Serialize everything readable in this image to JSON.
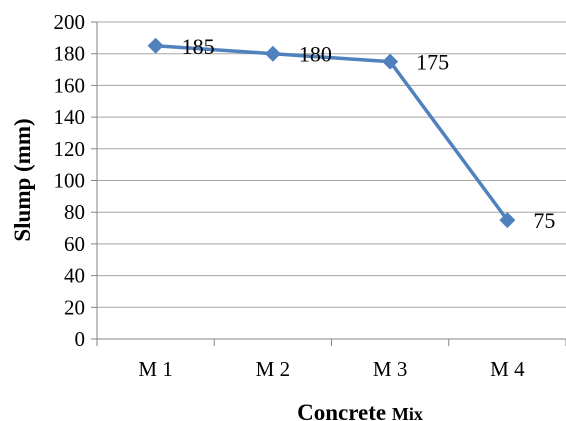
{
  "chart_data": {
    "type": "line",
    "categories": [
      "M 1",
      "M 2",
      "M 3",
      "M 4"
    ],
    "series": [
      {
        "values": [
          185,
          180,
          175,
          75
        ]
      }
    ],
    "data_labels": [
      "185",
      "180",
      "175",
      "75"
    ],
    "title": "",
    "xlabel": "Concrete Mix",
    "xlabel_main": "Concrete ",
    "xlabel_small": "Mix",
    "ylabel": "Slump (mm)",
    "ylim": [
      0,
      200
    ],
    "ytick_step": 20,
    "grid": "horizontal",
    "legend": "none",
    "colors": {
      "series": "#4F81BD",
      "grid": "#A6A6A6",
      "axis": "#868686"
    }
  }
}
